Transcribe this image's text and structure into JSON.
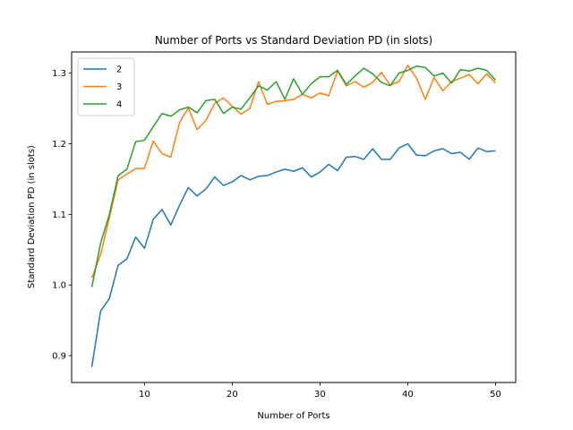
{
  "chart_data": {
    "type": "line",
    "title": "Number of Ports vs Standard Deviation PD (in slots)",
    "xlabel": "Number of Ports",
    "ylabel": "Standard Deviation PD (in slots)",
    "xlim": [
      1.7,
      52.3
    ],
    "ylim": [
      0.862,
      1.33
    ],
    "xticks": [
      10,
      20,
      30,
      40,
      50
    ],
    "yticks": [
      0.9,
      1.0,
      1.1,
      1.2,
      1.3
    ],
    "xtick_labels": [
      "10",
      "20",
      "30",
      "40",
      "50"
    ],
    "ytick_labels": [
      "0.9",
      "1.0",
      "1.1",
      "1.2",
      "1.3"
    ],
    "legend_position": "top-left",
    "grid": false,
    "x": [
      4,
      5,
      6,
      7,
      8,
      9,
      10,
      11,
      12,
      13,
      14,
      15,
      16,
      17,
      18,
      19,
      20,
      21,
      22,
      23,
      24,
      25,
      26,
      27,
      28,
      29,
      30,
      31,
      32,
      33,
      34,
      35,
      36,
      37,
      38,
      39,
      40,
      41,
      42,
      43,
      44,
      45,
      46,
      47,
      48,
      49,
      50
    ],
    "series": [
      {
        "name": "2",
        "color": "#1f77b4",
        "values": [
          0.884,
          0.963,
          0.981,
          1.028,
          1.037,
          1.068,
          1.052,
          1.093,
          1.107,
          1.085,
          1.113,
          1.138,
          1.126,
          1.136,
          1.153,
          1.141,
          1.146,
          1.155,
          1.149,
          1.154,
          1.155,
          1.16,
          1.164,
          1.161,
          1.166,
          1.153,
          1.16,
          1.171,
          1.162,
          1.181,
          1.182,
          1.178,
          1.193,
          1.178,
          1.178,
          1.194,
          1.2,
          1.184,
          1.183,
          1.19,
          1.193,
          1.186,
          1.188,
          1.178,
          1.194,
          1.189,
          1.19
        ]
      },
      {
        "name": "3",
        "color": "#ff7f0e",
        "values": [
          1.01,
          1.043,
          1.095,
          1.149,
          1.157,
          1.165,
          1.165,
          1.204,
          1.186,
          1.181,
          1.23,
          1.251,
          1.22,
          1.233,
          1.257,
          1.265,
          1.253,
          1.242,
          1.25,
          1.288,
          1.256,
          1.26,
          1.261,
          1.263,
          1.27,
          1.265,
          1.272,
          1.268,
          1.303,
          1.282,
          1.288,
          1.28,
          1.287,
          1.301,
          1.283,
          1.288,
          1.311,
          1.293,
          1.263,
          1.294,
          1.275,
          1.288,
          1.293,
          1.298,
          1.285,
          1.299,
          1.286
        ]
      },
      {
        "name": "4",
        "color": "#2ca02c",
        "values": [
          0.997,
          1.059,
          1.1,
          1.155,
          1.164,
          1.203,
          1.205,
          1.224,
          1.243,
          1.239,
          1.248,
          1.252,
          1.244,
          1.261,
          1.263,
          1.243,
          1.252,
          1.249,
          1.265,
          1.282,
          1.276,
          1.288,
          1.263,
          1.292,
          1.27,
          1.285,
          1.295,
          1.295,
          1.304,
          1.284,
          1.296,
          1.307,
          1.299,
          1.287,
          1.282,
          1.3,
          1.304,
          1.31,
          1.308,
          1.296,
          1.3,
          1.286,
          1.305,
          1.303,
          1.307,
          1.304,
          1.29
        ]
      }
    ]
  }
}
